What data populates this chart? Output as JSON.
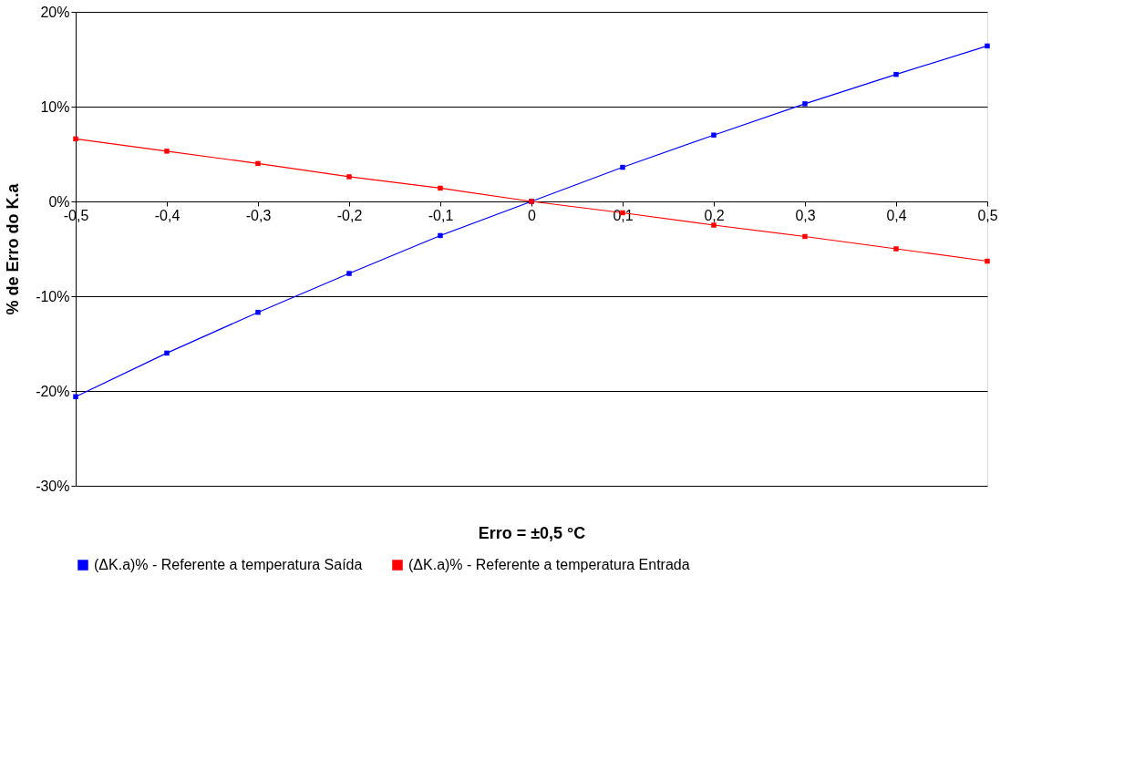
{
  "chart_data": {
    "type": "line",
    "xlabel": "Erro =  ±0,5 °C",
    "ylabel": "% de Erro do K.a",
    "x": [
      -0.5,
      -0.4,
      -0.3,
      -0.2,
      -0.1,
      0,
      0.1,
      0.2,
      0.3,
      0.4,
      0.5
    ],
    "series": [
      {
        "name": "(ΔK.a)% - Referente a temperatura Saída",
        "color": "#0000ff",
        "values": [
          -20.6,
          -16.0,
          -11.7,
          -7.6,
          -3.6,
          0,
          3.6,
          7.0,
          10.3,
          13.4,
          16.4
        ]
      },
      {
        "name": "(ΔK.a)% - Referente a temperatura Entrada",
        "color": "#ff0000",
        "values": [
          6.6,
          5.3,
          4.0,
          2.6,
          1.4,
          0,
          -1.2,
          -2.5,
          -3.7,
          -5.0,
          -6.3
        ]
      }
    ],
    "xlim": [
      -0.5,
      0.5
    ],
    "xticks": [
      {
        "value": -0.5,
        "label": "-0,5"
      },
      {
        "value": -0.4,
        "label": "-0,4"
      },
      {
        "value": -0.3,
        "label": "-0,3"
      },
      {
        "value": -0.2,
        "label": "-0,2"
      },
      {
        "value": -0.1,
        "label": "-0,1"
      },
      {
        "value": 0,
        "label": "0"
      },
      {
        "value": 0.1,
        "label": "0,1"
      },
      {
        "value": 0.2,
        "label": "0,2"
      },
      {
        "value": 0.3,
        "label": "0,3"
      },
      {
        "value": 0.4,
        "label": "0,4"
      },
      {
        "value": 0.5,
        "label": "0,5"
      }
    ],
    "ylim": [
      -30,
      20
    ],
    "yticks": [
      {
        "value": -30,
        "label": "-30%"
      },
      {
        "value": -20,
        "label": "-20%"
      },
      {
        "value": -10,
        "label": "-10%"
      },
      {
        "value": 0,
        "label": "0%"
      },
      {
        "value": 10,
        "label": "10%"
      },
      {
        "value": 20,
        "label": "20%"
      }
    ],
    "grid": "y",
    "legend": "bottom",
    "marker": "square",
    "line_style": "solid"
  }
}
